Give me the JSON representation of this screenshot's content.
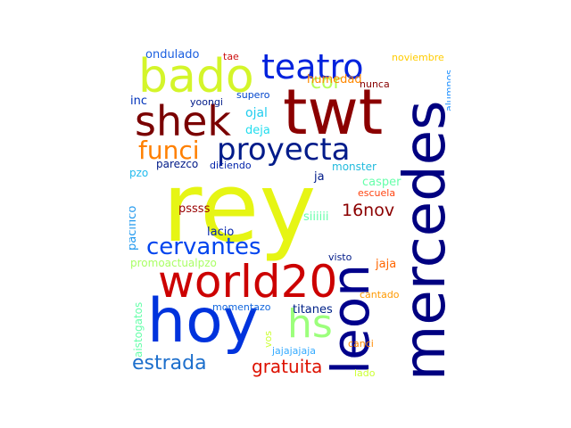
{
  "words": [
    {
      "id": "rey",
      "text": "rey",
      "color": "#e6f514"
    },
    {
      "id": "mercedes",
      "text": "mercedes",
      "color": "#000080"
    },
    {
      "id": "leon",
      "text": "leon",
      "color": "#00008b"
    },
    {
      "id": "twt",
      "text": "twt",
      "color": "#8b0000"
    },
    {
      "id": "hoy",
      "text": "hoy",
      "color": "#0033dd"
    },
    {
      "id": "world20",
      "text": "world20",
      "color": "#cc0000"
    },
    {
      "id": "bado",
      "text": "bado",
      "color": "#d4f52a"
    },
    {
      "id": "shek",
      "text": "shek",
      "color": "#7a0000"
    },
    {
      "id": "teatro",
      "text": "teatro",
      "color": "#0022dd"
    },
    {
      "id": "proyecta",
      "text": "proyecta",
      "color": "#001b8a"
    },
    {
      "id": "hs",
      "text": "hs",
      "color": "#9cff7c"
    },
    {
      "id": "cervantes",
      "text": "cervantes",
      "color": "#0044ee"
    },
    {
      "id": "funci",
      "text": "funci",
      "color": "#ff8000"
    },
    {
      "id": "estrada",
      "text": "estrada",
      "color": "#1d6fcc"
    },
    {
      "id": "gratuita",
      "text": "gratuita",
      "color": "#dd1100"
    },
    {
      "id": "cor",
      "text": "cor",
      "color": "#b6ff5a"
    },
    {
      "id": "16nov",
      "text": "16nov",
      "color": "#8b0000"
    },
    {
      "id": "ondulado",
      "text": "ondulado",
      "color": "#1a5fe0"
    },
    {
      "id": "tae",
      "text": "tae",
      "color": "#cc1111"
    },
    {
      "id": "noviembre",
      "text": "noviembre",
      "color": "#ffcc00"
    },
    {
      "id": "humedad",
      "text": "humedad",
      "color": "#ff8800"
    },
    {
      "id": "nunca",
      "text": "nunca",
      "color": "#880000"
    },
    {
      "id": "yoongi",
      "text": "yoongi",
      "color": "#001a88"
    },
    {
      "id": "supero",
      "text": "supero",
      "color": "#0044cc"
    },
    {
      "id": "inc",
      "text": "inc",
      "color": "#0033bb"
    },
    {
      "id": "ojal",
      "text": "ojal",
      "color": "#22ccee"
    },
    {
      "id": "deja",
      "text": "deja",
      "color": "#22ddee"
    },
    {
      "id": "alumnos",
      "text": "alumnos",
      "color": "#1e90ff"
    },
    {
      "id": "parezco",
      "text": "parezco",
      "color": "#001a88"
    },
    {
      "id": "diciendo",
      "text": "diciendo",
      "color": "#0022aa"
    },
    {
      "id": "pzo",
      "text": "pzo",
      "color": "#22bbee"
    },
    {
      "id": "monster",
      "text": "monster",
      "color": "#22bbdd"
    },
    {
      "id": "ja",
      "text": "ja",
      "color": "#001a88"
    },
    {
      "id": "casper",
      "text": "casper",
      "color": "#66ffaa"
    },
    {
      "id": "escuela",
      "text": "escuela",
      "color": "#ff4411"
    },
    {
      "id": "pacifico",
      "text": "pacifico",
      "color": "#2299ee"
    },
    {
      "id": "pssss",
      "text": "pssss",
      "color": "#990000"
    },
    {
      "id": "siiiiii",
      "text": "siiiiii",
      "color": "#66ffaa"
    },
    {
      "id": "lacio",
      "text": "lacio",
      "color": "#0022aa"
    },
    {
      "id": "promoactualpzo",
      "text": "promoactualpzo",
      "color": "#aaff66"
    },
    {
      "id": "visto",
      "text": "visto",
      "color": "#001a88"
    },
    {
      "id": "jaja",
      "text": "jaja",
      "color": "#ff6600"
    },
    {
      "id": "aistogatos",
      "text": "aistogatos",
      "color": "#66ffaa"
    },
    {
      "id": "cantado",
      "text": "cantado",
      "color": "#ff9900"
    },
    {
      "id": "momentazo",
      "text": "momentazo",
      "color": "#1166dd"
    },
    {
      "id": "titanes",
      "text": "titanes",
      "color": "#002288"
    },
    {
      "id": "vos",
      "text": "vos",
      "color": "#ccff33"
    },
    {
      "id": "jajajajaja",
      "text": "jajajajaja",
      "color": "#33aaff"
    },
    {
      "id": "canci",
      "text": "canci",
      "color": "#ff8800"
    },
    {
      "id": "lado",
      "text": "lado",
      "color": "#ccff33"
    }
  ]
}
